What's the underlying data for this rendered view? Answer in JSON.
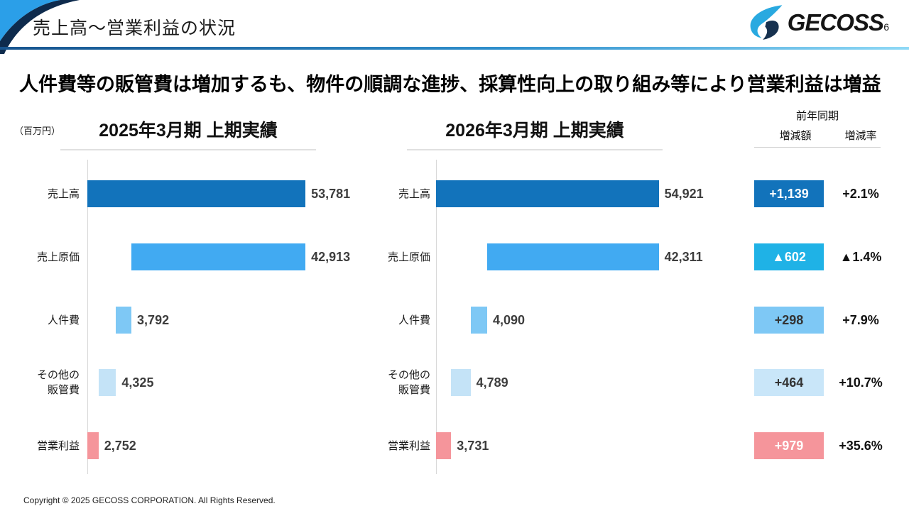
{
  "header": {
    "title": "売上高～営業利益の状況",
    "logo_text": "GECOSS",
    "page_number": "6"
  },
  "subtitle": "人件費等の販管費は増加するも、物件の順調な進捗、採算性向上の取り組み等により営業利益は増益",
  "unit_label": "（百万円）",
  "comparison": {
    "header": "前年同期",
    "amount_col": "増減額",
    "rate_col": "増減率",
    "rows": [
      {
        "amount": "+1,139",
        "rate": "+2.1%",
        "bg": "#1273BB",
        "fg": "#FFFFFF"
      },
      {
        "amount": "▲602",
        "rate": "▲1.4%",
        "bg": "#1FB2E6",
        "fg": "#FFFFFF"
      },
      {
        "amount": "+298",
        "rate": "+7.9%",
        "bg": "#7EC8F5",
        "fg": "#333333"
      },
      {
        "amount": "+464",
        "rate": "+10.7%",
        "bg": "#C9E6F9",
        "fg": "#333333"
      },
      {
        "amount": "+979",
        "rate": "+35.6%",
        "bg": "#F5959B",
        "fg": "#FFFFFF"
      }
    ]
  },
  "chart_data": [
    {
      "type": "bar",
      "orientation": "horizontal",
      "layout": "waterfall-stacked-from-axis",
      "title": "2025年3月期 上期実績",
      "unit": "百万円",
      "categories": [
        "売上高",
        "売上原価",
        "人件費",
        "その他の販管費",
        "営業利益"
      ],
      "category_lines": [
        [
          "売上高"
        ],
        [
          "売上原価"
        ],
        [
          "人件費"
        ],
        [
          "その他の",
          "販管費"
        ],
        [
          "営業利益"
        ]
      ],
      "values": [
        53781,
        42913,
        3792,
        4325,
        2752
      ],
      "value_labels": [
        "53,781",
        "42,913",
        "3,792",
        "4,325",
        "2,752"
      ],
      "bar_colors": [
        "#1273BB",
        "#41AAF2",
        "#7EC8F5",
        "#C4E3F7",
        "#F5959B"
      ],
      "xlim": [
        0,
        56500
      ],
      "grid": false,
      "legend": false
    },
    {
      "type": "bar",
      "orientation": "horizontal",
      "layout": "waterfall-stacked-from-axis",
      "title": "2026年3月期 上期実績",
      "unit": "百万円",
      "categories": [
        "売上高",
        "売上原価",
        "人件費",
        "その他の販管費",
        "営業利益"
      ],
      "category_lines": [
        [
          "売上高"
        ],
        [
          "売上原価"
        ],
        [
          "人件費"
        ],
        [
          "その他の",
          "販管費"
        ],
        [
          "営業利益"
        ]
      ],
      "values": [
        54921,
        42311,
        4090,
        4789,
        3731
      ],
      "value_labels": [
        "54,921",
        "42,311",
        "4,090",
        "4,789",
        "3,731"
      ],
      "bar_colors": [
        "#1273BB",
        "#41AAF2",
        "#7EC8F5",
        "#C4E3F7",
        "#F5959B"
      ],
      "xlim": [
        0,
        56500
      ],
      "grid": false,
      "legend": false
    }
  ],
  "footer": "Copyright © 2025 GECOSS CORPORATION.  All Rights Reserved."
}
